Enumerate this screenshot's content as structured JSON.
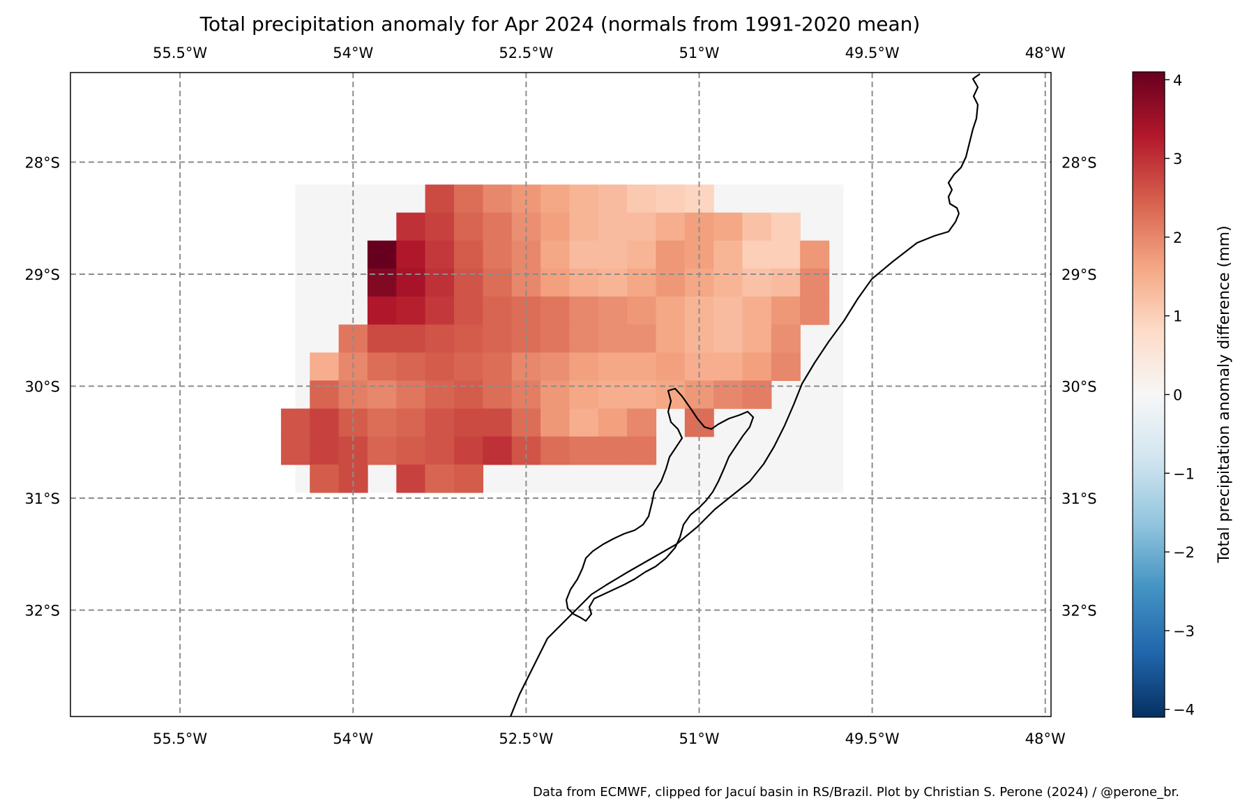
{
  "chart_data": {
    "type": "heatmap",
    "title": "Total precipitation anomaly for Apr 2024 (normals from 1991-2020 mean)",
    "caption": "Data from ECMWF, clipped for Jacuí basin in RS/Brazil. Plot by Christian S. Perone (2024) / @perone_br.",
    "xlim": [
      -56.45,
      -47.95
    ],
    "ylim": [
      -32.95,
      -27.2
    ],
    "x_ticks": [
      {
        "value": -55.5,
        "label": "55.5°W"
      },
      {
        "value": -54.0,
        "label": "54°W"
      },
      {
        "value": -52.5,
        "label": "52.5°W"
      },
      {
        "value": -51.0,
        "label": "51°W"
      },
      {
        "value": -49.5,
        "label": "49.5°W"
      },
      {
        "value": -48.0,
        "label": "48°W"
      }
    ],
    "y_ticks": [
      {
        "value": -28.0,
        "label": "28°S"
      },
      {
        "value": -29.0,
        "label": "29°S"
      },
      {
        "value": -30.0,
        "label": "30°S"
      },
      {
        "value": -31.0,
        "label": "31°S"
      },
      {
        "value": -32.0,
        "label": "32°S"
      }
    ],
    "grid": true,
    "colorbar": {
      "label": "Total precipitation anomaly difference (mm)",
      "range": [
        -4.1,
        4.1
      ],
      "cmap": "RdBu_r",
      "ticks": [
        {
          "value": 4,
          "label": "4"
        },
        {
          "value": 3,
          "label": "3"
        },
        {
          "value": 2,
          "label": "2"
        },
        {
          "value": 1,
          "label": "1"
        },
        {
          "value": 0,
          "label": "0"
        },
        {
          "value": -1,
          "label": "−1"
        },
        {
          "value": -2,
          "label": "−2"
        },
        {
          "value": -3,
          "label": "−3"
        },
        {
          "value": -4,
          "label": "−4"
        }
      ]
    },
    "grid_cell_size_deg": 0.25,
    "background_region": {
      "lon_min": -54.5,
      "lon_max": -49.75,
      "lat_min": -30.95,
      "lat_max": -28.2
    },
    "cells": [
      {
        "lat": -28.325,
        "lon": -53.25,
        "value": 2.7
      },
      {
        "lat": -28.325,
        "lon": -53.0,
        "value": 2.3
      },
      {
        "lat": -28.325,
        "lon": -52.75,
        "value": 2.0
      },
      {
        "lat": -28.325,
        "lon": -52.5,
        "value": 1.8
      },
      {
        "lat": -28.325,
        "lon": -52.25,
        "value": 1.6
      },
      {
        "lat": -28.325,
        "lon": -52.0,
        "value": 1.4
      },
      {
        "lat": -28.325,
        "lon": -51.75,
        "value": 1.3
      },
      {
        "lat": -28.325,
        "lon": -51.5,
        "value": 1.1
      },
      {
        "lat": -28.325,
        "lon": -51.25,
        "value": 1.0
      },
      {
        "lat": -28.325,
        "lon": -51.0,
        "value": 0.9
      },
      {
        "lat": -28.575,
        "lon": -53.5,
        "value": 3.0
      },
      {
        "lat": -28.575,
        "lon": -53.25,
        "value": 2.8
      },
      {
        "lat": -28.575,
        "lon": -53.0,
        "value": 2.4
      },
      {
        "lat": -28.575,
        "lon": -52.75,
        "value": 2.2
      },
      {
        "lat": -28.575,
        "lon": -52.5,
        "value": 1.9
      },
      {
        "lat": -28.575,
        "lon": -52.25,
        "value": 1.7
      },
      {
        "lat": -28.575,
        "lon": -52.0,
        "value": 1.4
      },
      {
        "lat": -28.575,
        "lon": -51.75,
        "value": 1.3
      },
      {
        "lat": -28.575,
        "lon": -51.5,
        "value": 1.3
      },
      {
        "lat": -28.575,
        "lon": -51.25,
        "value": 1.5
      },
      {
        "lat": -28.575,
        "lon": -51.0,
        "value": 1.7
      },
      {
        "lat": -28.575,
        "lon": -50.75,
        "value": 1.6
      },
      {
        "lat": -28.575,
        "lon": -50.5,
        "value": 1.2
      },
      {
        "lat": -28.575,
        "lon": -50.25,
        "value": 1.0
      },
      {
        "lat": -28.825,
        "lon": -53.75,
        "value": 4.1
      },
      {
        "lat": -28.825,
        "lon": -53.5,
        "value": 3.3
      },
      {
        "lat": -28.825,
        "lon": -53.25,
        "value": 2.9
      },
      {
        "lat": -28.825,
        "lon": -53.0,
        "value": 2.5
      },
      {
        "lat": -28.825,
        "lon": -52.75,
        "value": 2.2
      },
      {
        "lat": -28.825,
        "lon": -52.5,
        "value": 2.0
      },
      {
        "lat": -28.825,
        "lon": -52.25,
        "value": 1.6
      },
      {
        "lat": -28.825,
        "lon": -52.0,
        "value": 1.3
      },
      {
        "lat": -28.825,
        "lon": -51.75,
        "value": 1.3
      },
      {
        "lat": -28.825,
        "lon": -51.5,
        "value": 1.4
      },
      {
        "lat": -28.825,
        "lon": -51.25,
        "value": 1.8
      },
      {
        "lat": -28.825,
        "lon": -51.0,
        "value": 1.7
      },
      {
        "lat": -28.825,
        "lon": -50.75,
        "value": 1.4
      },
      {
        "lat": -28.825,
        "lon": -50.5,
        "value": 1.0
      },
      {
        "lat": -28.825,
        "lon": -50.25,
        "value": 1.0
      },
      {
        "lat": -28.825,
        "lon": -50.0,
        "value": 1.8
      },
      {
        "lat": -29.075,
        "lon": -53.75,
        "value": 3.8
      },
      {
        "lat": -29.075,
        "lon": -53.5,
        "value": 3.4
      },
      {
        "lat": -29.075,
        "lon": -53.25,
        "value": 3.0
      },
      {
        "lat": -29.075,
        "lon": -53.0,
        "value": 2.6
      },
      {
        "lat": -29.075,
        "lon": -52.75,
        "value": 2.3
      },
      {
        "lat": -29.075,
        "lon": -52.5,
        "value": 2.0
      },
      {
        "lat": -29.075,
        "lon": -52.25,
        "value": 1.7
      },
      {
        "lat": -29.075,
        "lon": -52.0,
        "value": 1.5
      },
      {
        "lat": -29.075,
        "lon": -51.75,
        "value": 1.4
      },
      {
        "lat": -29.075,
        "lon": -51.5,
        "value": 1.6
      },
      {
        "lat": -29.075,
        "lon": -51.25,
        "value": 1.8
      },
      {
        "lat": -29.075,
        "lon": -51.0,
        "value": 1.6
      },
      {
        "lat": -29.075,
        "lon": -50.75,
        "value": 1.4
      },
      {
        "lat": -29.075,
        "lon": -50.5,
        "value": 1.2
      },
      {
        "lat": -29.075,
        "lon": -50.25,
        "value": 1.3
      },
      {
        "lat": -29.075,
        "lon": -50.0,
        "value": 2.0
      },
      {
        "lat": -29.325,
        "lon": -53.75,
        "value": 3.3
      },
      {
        "lat": -29.325,
        "lon": -53.5,
        "value": 3.2
      },
      {
        "lat": -29.325,
        "lon": -53.25,
        "value": 2.9
      },
      {
        "lat": -29.325,
        "lon": -53.0,
        "value": 2.6
      },
      {
        "lat": -29.325,
        "lon": -52.75,
        "value": 2.4
      },
      {
        "lat": -29.325,
        "lon": -52.5,
        "value": 2.3
      },
      {
        "lat": -29.325,
        "lon": -52.25,
        "value": 2.2
      },
      {
        "lat": -29.325,
        "lon": -52.0,
        "value": 2.0
      },
      {
        "lat": -29.325,
        "lon": -51.75,
        "value": 1.9
      },
      {
        "lat": -29.325,
        "lon": -51.5,
        "value": 1.8
      },
      {
        "lat": -29.325,
        "lon": -51.25,
        "value": 1.6
      },
      {
        "lat": -29.325,
        "lon": -51.0,
        "value": 1.4
      },
      {
        "lat": -29.325,
        "lon": -50.75,
        "value": 1.3
      },
      {
        "lat": -29.325,
        "lon": -50.5,
        "value": 1.5
      },
      {
        "lat": -29.325,
        "lon": -50.25,
        "value": 1.8
      },
      {
        "lat": -29.325,
        "lon": -50.0,
        "value": 2.0
      },
      {
        "lat": -29.575,
        "lon": -54.0,
        "value": 2.2
      },
      {
        "lat": -29.575,
        "lon": -53.75,
        "value": 2.7
      },
      {
        "lat": -29.575,
        "lon": -53.5,
        "value": 2.7
      },
      {
        "lat": -29.575,
        "lon": -53.25,
        "value": 2.6
      },
      {
        "lat": -29.575,
        "lon": -53.0,
        "value": 2.5
      },
      {
        "lat": -29.575,
        "lon": -52.75,
        "value": 2.4
      },
      {
        "lat": -29.575,
        "lon": -52.5,
        "value": 2.3
      },
      {
        "lat": -29.575,
        "lon": -52.25,
        "value": 2.2
      },
      {
        "lat": -29.575,
        "lon": -52.0,
        "value": 2.0
      },
      {
        "lat": -29.575,
        "lon": -51.75,
        "value": 1.9
      },
      {
        "lat": -29.575,
        "lon": -51.5,
        "value": 1.9
      },
      {
        "lat": -29.575,
        "lon": -51.25,
        "value": 1.6
      },
      {
        "lat": -29.575,
        "lon": -51.0,
        "value": 1.4
      },
      {
        "lat": -29.575,
        "lon": -50.75,
        "value": 1.3
      },
      {
        "lat": -29.575,
        "lon": -50.5,
        "value": 1.5
      },
      {
        "lat": -29.575,
        "lon": -50.25,
        "value": 1.9
      },
      {
        "lat": -29.825,
        "lon": -54.25,
        "value": 1.5
      },
      {
        "lat": -29.825,
        "lon": -54.0,
        "value": 2.0
      },
      {
        "lat": -29.825,
        "lon": -53.75,
        "value": 2.3
      },
      {
        "lat": -29.825,
        "lon": -53.5,
        "value": 2.4
      },
      {
        "lat": -29.825,
        "lon": -53.25,
        "value": 2.5
      },
      {
        "lat": -29.825,
        "lon": -53.0,
        "value": 2.4
      },
      {
        "lat": -29.825,
        "lon": -52.75,
        "value": 2.3
      },
      {
        "lat": -29.825,
        "lon": -52.5,
        "value": 2.0
      },
      {
        "lat": -29.825,
        "lon": -52.25,
        "value": 1.9
      },
      {
        "lat": -29.825,
        "lon": -52.0,
        "value": 1.7
      },
      {
        "lat": -29.825,
        "lon": -51.75,
        "value": 1.6
      },
      {
        "lat": -29.825,
        "lon": -51.5,
        "value": 1.6
      },
      {
        "lat": -29.825,
        "lon": -51.25,
        "value": 1.7
      },
      {
        "lat": -29.825,
        "lon": -51.0,
        "value": 1.5
      },
      {
        "lat": -29.825,
        "lon": -50.75,
        "value": 1.5
      },
      {
        "lat": -29.825,
        "lon": -50.5,
        "value": 1.7
      },
      {
        "lat": -29.825,
        "lon": -50.25,
        "value": 2.0
      },
      {
        "lat": -30.075,
        "lon": -54.25,
        "value": 2.4
      },
      {
        "lat": -30.075,
        "lon": -54.0,
        "value": 2.1
      },
      {
        "lat": -30.075,
        "lon": -53.75,
        "value": 2.0
      },
      {
        "lat": -30.075,
        "lon": -53.5,
        "value": 2.2
      },
      {
        "lat": -30.075,
        "lon": -53.25,
        "value": 2.4
      },
      {
        "lat": -30.075,
        "lon": -53.0,
        "value": 2.5
      },
      {
        "lat": -30.075,
        "lon": -52.75,
        "value": 2.3
      },
      {
        "lat": -30.075,
        "lon": -52.5,
        "value": 2.1
      },
      {
        "lat": -30.075,
        "lon": -52.25,
        "value": 1.8
      },
      {
        "lat": -30.075,
        "lon": -52.0,
        "value": 1.6
      },
      {
        "lat": -30.075,
        "lon": -51.75,
        "value": 1.5
      },
      {
        "lat": -30.075,
        "lon": -51.5,
        "value": 1.5
      },
      {
        "lat": -30.075,
        "lon": -51.25,
        "value": 1.6
      },
      {
        "lat": -30.075,
        "lon": -51.0,
        "value": 1.8
      },
      {
        "lat": -30.075,
        "lon": -50.75,
        "value": 2.0
      },
      {
        "lat": -30.075,
        "lon": -50.5,
        "value": 2.1
      },
      {
        "lat": -30.325,
        "lon": -54.5,
        "value": 2.6
      },
      {
        "lat": -30.325,
        "lon": -54.25,
        "value": 2.8
      },
      {
        "lat": -30.325,
        "lon": -54.0,
        "value": 2.5
      },
      {
        "lat": -30.325,
        "lon": -53.75,
        "value": 2.3
      },
      {
        "lat": -30.325,
        "lon": -53.5,
        "value": 2.4
      },
      {
        "lat": -30.325,
        "lon": -53.25,
        "value": 2.6
      },
      {
        "lat": -30.325,
        "lon": -53.0,
        "value": 2.7
      },
      {
        "lat": -30.325,
        "lon": -52.75,
        "value": 2.7
      },
      {
        "lat": -30.325,
        "lon": -52.5,
        "value": 2.3
      },
      {
        "lat": -30.325,
        "lon": -52.25,
        "value": 1.8
      },
      {
        "lat": -30.325,
        "lon": -52.0,
        "value": 1.5
      },
      {
        "lat": -30.325,
        "lon": -51.75,
        "value": 1.7
      },
      {
        "lat": -30.325,
        "lon": -51.5,
        "value": 2.0
      },
      {
        "lat": -30.325,
        "lon": -51.0,
        "value": 2.3
      },
      {
        "lat": -30.575,
        "lon": -54.5,
        "value": 2.6
      },
      {
        "lat": -30.575,
        "lon": -54.25,
        "value": 2.8
      },
      {
        "lat": -30.575,
        "lon": -54.0,
        "value": 2.7
      },
      {
        "lat": -30.575,
        "lon": -53.75,
        "value": 2.4
      },
      {
        "lat": -30.575,
        "lon": -53.5,
        "value": 2.5
      },
      {
        "lat": -30.575,
        "lon": -53.25,
        "value": 2.6
      },
      {
        "lat": -30.575,
        "lon": -53.0,
        "value": 2.8
      },
      {
        "lat": -30.575,
        "lon": -52.75,
        "value": 3.0
      },
      {
        "lat": -30.575,
        "lon": -52.5,
        "value": 2.6
      },
      {
        "lat": -30.575,
        "lon": -52.25,
        "value": 2.3
      },
      {
        "lat": -30.575,
        "lon": -52.0,
        "value": 2.2
      },
      {
        "lat": -30.575,
        "lon": -51.75,
        "value": 2.2
      },
      {
        "lat": -30.575,
        "lon": -51.5,
        "value": 2.2
      },
      {
        "lat": -30.825,
        "lon": -54.25,
        "value": 2.5
      },
      {
        "lat": -30.825,
        "lon": -54.0,
        "value": 2.7
      },
      {
        "lat": -30.825,
        "lon": -53.5,
        "value": 2.8
      },
      {
        "lat": -30.825,
        "lon": -53.25,
        "value": 2.4
      },
      {
        "lat": -30.825,
        "lon": -53.0,
        "value": 2.5
      }
    ]
  },
  "colors": {
    "region_background": "#f5f5f5",
    "grid_line": "#8c8c8c",
    "coastline": "#000000"
  }
}
